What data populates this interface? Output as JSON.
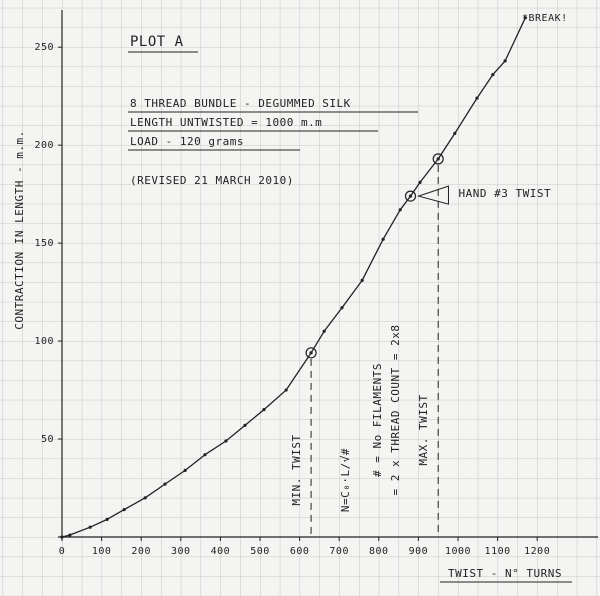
{
  "chart_data": {
    "type": "line",
    "title": "PLOT A",
    "notes": [
      "8 THREAD BUNDLE - DEGUMMED SILK",
      "LENGTH UNTWISTED = 1000 m.m",
      "LOAD - 120 grams",
      "(REVISED 21 MARCH 2010)"
    ],
    "x_label": "TWIST - N° TURNS",
    "y_label": "CONTRACTION IN LENGTH - m.m.",
    "x": [
      0,
      20,
      71,
      114,
      157,
      210,
      260,
      311,
      361,
      414,
      462,
      510,
      566,
      629,
      662,
      707,
      758,
      811,
      854,
      880,
      904,
      950,
      992,
      1048,
      1088,
      1119,
      1170
    ],
    "series": [
      {
        "name": "Contraction",
        "color": "#222222",
        "values": [
          0,
          1,
          5,
          9,
          14,
          20,
          27,
          34,
          42,
          49,
          57,
          65,
          75,
          94,
          105,
          117,
          131,
          152,
          167,
          174,
          181,
          193,
          206,
          224,
          236,
          243,
          265
        ]
      }
    ],
    "markers": [
      {
        "label": "MIN. TWIST",
        "x": 629,
        "y": 94
      },
      {
        "label": "HAND #3 TWIST",
        "x": 880,
        "y": 174
      },
      {
        "label": "MAX. TWIST",
        "x": 950,
        "y": 193
      }
    ],
    "formula": "N=C₀·L/√#",
    "filaments_note": [
      "# = No FILAMENTS",
      "= 2 x THREAD COUNT = 2x8"
    ],
    "break_label": "*BREAK!",
    "xlim": [
      0,
      1350
    ],
    "ylim": [
      0,
      270
    ],
    "xticks": [
      0,
      100,
      200,
      300,
      400,
      500,
      600,
      700,
      800,
      900,
      1000,
      1100,
      1200
    ],
    "yticks": [
      50,
      100,
      150,
      200,
      250
    ],
    "grid": true
  }
}
